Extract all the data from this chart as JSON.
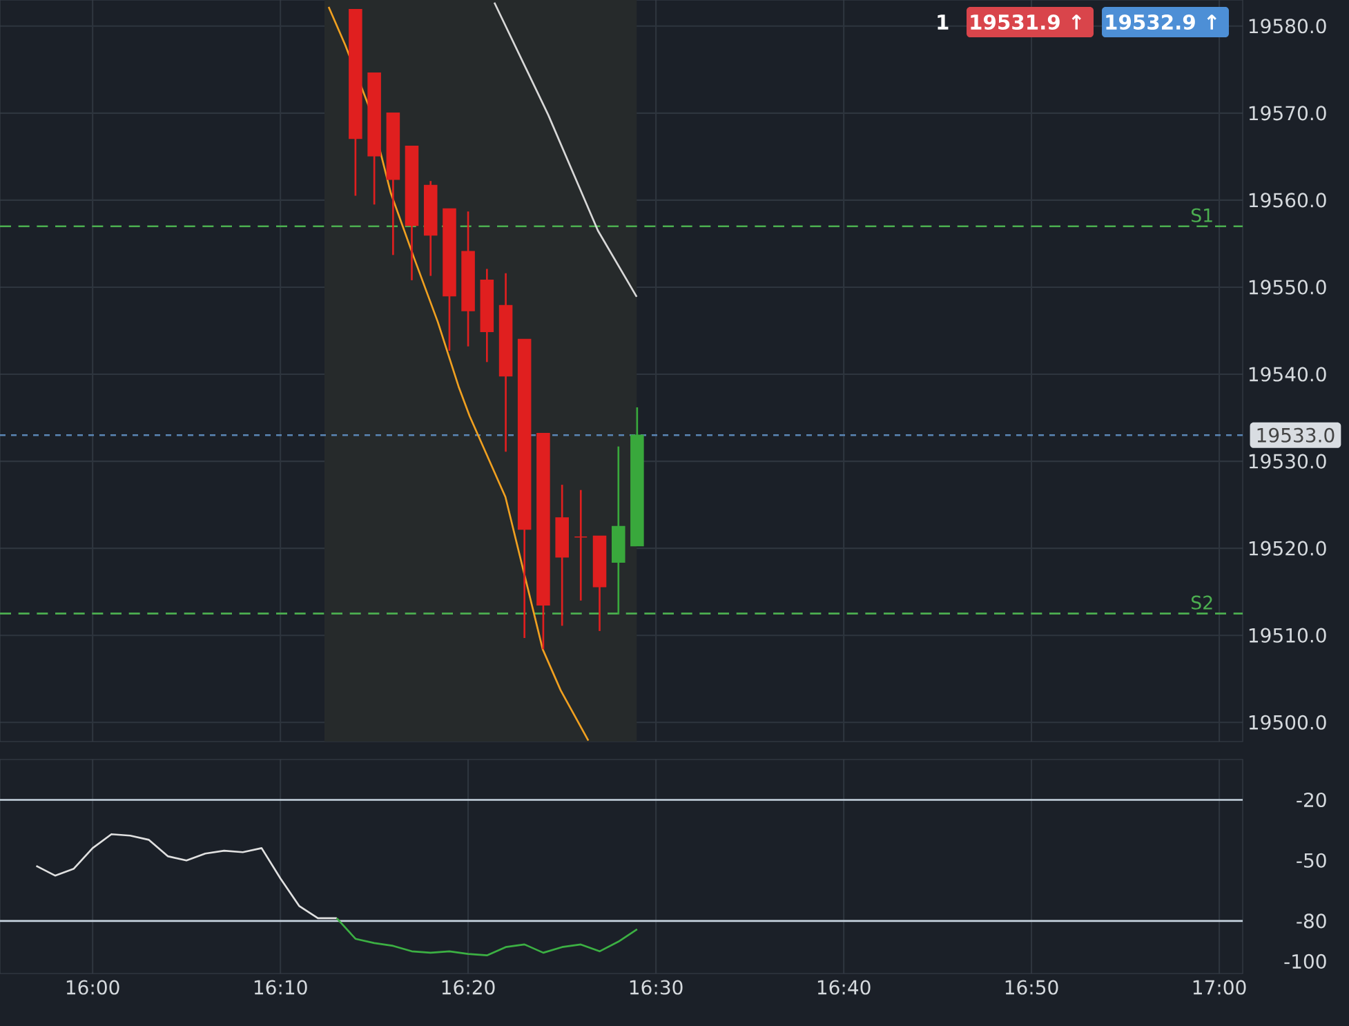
{
  "chart_data": [
    {
      "type": "candlestick",
      "xlim": [
        15.9178,
        17.0208
      ],
      "ylim": [
        19497.8,
        19583.0
      ],
      "xticks": [
        16.0,
        16.1667,
        16.3333,
        16.5,
        16.6667,
        16.8333,
        17.0
      ],
      "yticks": [
        {
          "value": 19500,
          "label": "19500.0"
        },
        {
          "value": 19510,
          "label": "19510.0"
        },
        {
          "value": 19520,
          "label": "19520.0"
        },
        {
          "value": 19530,
          "label": "19530.0"
        },
        {
          "value": 19540,
          "label": "19540.0"
        },
        {
          "value": 19550,
          "label": "19550.0"
        },
        {
          "value": 19560,
          "label": "19560.0"
        },
        {
          "value": 19570,
          "label": "19570.0"
        },
        {
          "value": 19580,
          "label": "19580.0"
        }
      ],
      "tick_labels": "y",
      "grid": true,
      "bands": [
        {
          "axis": "x",
          "from": 16.2058,
          "to": 16.4829,
          "color": "#262a2b"
        }
      ],
      "ref_lines": [
        {
          "axis": "y",
          "value": 19557.0,
          "label": "S1",
          "color": "#4caf50",
          "line_style": "dashed"
        },
        {
          "axis": "y",
          "value": 19512.5,
          "label": "S2",
          "color": "#4caf50",
          "line_style": "dashed"
        },
        {
          "axis": "y",
          "value": 19533.0,
          "label": "19533.0",
          "color": "#5b86b5",
          "line_style": "dotted"
        }
      ],
      "annotations": [
        "1",
        "19531.9 ↑",
        "19532.9 ↑"
      ],
      "series": [
        {
          "type": "line",
          "color": "#f0a020",
          "x": [
            16.2095,
            16.2243,
            16.2451,
            16.2647,
            16.2855,
            16.3064,
            16.3248,
            16.3346,
            16.3664,
            16.3995,
            16.4154,
            16.44
          ],
          "values": [
            19582.2,
            19577.8,
            19570.8,
            19560.8,
            19553.3,
            19546.0,
            19538.6,
            19535.2,
            19525.9,
            19508.4,
            19503.7,
            19497.9
          ]
        },
        {
          "type": "line",
          "color": "#d8d8d8",
          "x": [
            16.3566,
            16.4044,
            16.4485,
            16.4829
          ],
          "values": [
            19582.7,
            19569.8,
            19556.5,
            19548.9
          ]
        },
        {
          "type": "candlestick",
          "x": [
            16.2333,
            16.25,
            16.2667,
            16.2833,
            16.3,
            16.3167,
            16.3333,
            16.35,
            16.3667,
            16.3833,
            16.4,
            16.4167,
            16.4333,
            16.45,
            16.4667,
            16.4833
          ],
          "ohlc": [
            [
              19581.9,
              19581.9,
              19560.5,
              19567.1
            ],
            [
              19574.6,
              19574.6,
              19559.5,
              19565.1
            ],
            [
              19570.0,
              19570.0,
              19553.7,
              19562.4
            ],
            [
              19566.2,
              19566.2,
              19550.8,
              19557.1
            ],
            [
              19561.7,
              19562.2,
              19551.3,
              19556.0
            ],
            [
              19559.0,
              19559.0,
              19542.7,
              19549.0
            ],
            [
              19554.1,
              19558.7,
              19543.2,
              19547.3
            ],
            [
              19550.8,
              19552.1,
              19541.4,
              19544.9
            ],
            [
              19547.9,
              19551.6,
              19531.1,
              19539.8
            ],
            [
              19544.0,
              19544.0,
              19509.7,
              19522.2
            ],
            [
              19533.2,
              19533.2,
              19508.4,
              19513.5
            ],
            [
              19523.5,
              19527.3,
              19511.1,
              19519.0
            ],
            [
              19521.3,
              19526.7,
              19514.0,
              19521.3
            ],
            [
              19521.4,
              19521.4,
              19510.5,
              19515.6
            ],
            [
              19518.4,
              19531.7,
              19512.4,
              19522.5
            ],
            [
              19520.3,
              19536.2,
              19520.3,
              19533.0
            ]
          ],
          "colors": [
            "#e01f1f",
            "#e01f1f",
            "#e01f1f",
            "#e01f1f",
            "#e01f1f",
            "#e01f1f",
            "#e01f1f",
            "#e01f1f",
            "#e01f1f",
            "#e01f1f",
            "#e01f1f",
            "#e01f1f",
            "#e01f1f",
            "#e01f1f",
            "#39a83c",
            "#39a83c"
          ]
        }
      ]
    },
    {
      "type": "line",
      "xlim": [
        15.9178,
        17.0208
      ],
      "ylim": [
        -106,
        0
      ],
      "xticks": [
        {
          "value": 16.0,
          "label": "16:00"
        },
        {
          "value": 16.1667,
          "label": "16:10"
        },
        {
          "value": 16.3333,
          "label": "16:20"
        },
        {
          "value": 16.5,
          "label": "16:30"
        },
        {
          "value": 16.6667,
          "label": "16:40"
        },
        {
          "value": 16.8333,
          "label": "16:50"
        },
        {
          "value": 17.0,
          "label": "17:00"
        }
      ],
      "yticks": [
        -20,
        -50,
        -80,
        -100
      ],
      "grid": "x",
      "ref_lines": [
        {
          "axis": "y",
          "value": -20,
          "color": "#c8d4e0"
        },
        {
          "axis": "y",
          "value": -80,
          "color": "#c8d4e0"
        }
      ],
      "series": [
        {
          "color": "#e0e0e0",
          "x": [
            15.95,
            15.9667,
            15.9833,
            16.0,
            16.0167,
            16.0333,
            16.05,
            16.0667,
            16.0833,
            16.1,
            16.1167,
            16.1333,
            16.15,
            16.1667,
            16.1833,
            16.2,
            16.2167
          ],
          "values": [
            -52.7,
            -57.5,
            -54.1,
            -43.9,
            -37.0,
            -37.7,
            -39.8,
            -47.9,
            -50.0,
            -46.6,
            -45.2,
            -45.9,
            -43.9,
            -58.9,
            -72.5,
            -78.6,
            -78.6
          ]
        },
        {
          "color": "#3cb043",
          "x": [
            16.2167,
            16.2333,
            16.25,
            16.2667,
            16.2833,
            16.3,
            16.3167,
            16.3333,
            16.35,
            16.3667,
            16.3833,
            16.4,
            16.4167,
            16.4333,
            16.45,
            16.4667,
            16.4833
          ],
          "values": [
            -78.6,
            -88.8,
            -90.9,
            -92.3,
            -95.0,
            -95.7,
            -95.0,
            -96.3,
            -97.0,
            -92.9,
            -91.6,
            -95.7,
            -92.9,
            -91.6,
            -95.0,
            -90.2,
            -84.1
          ]
        }
      ]
    }
  ]
}
